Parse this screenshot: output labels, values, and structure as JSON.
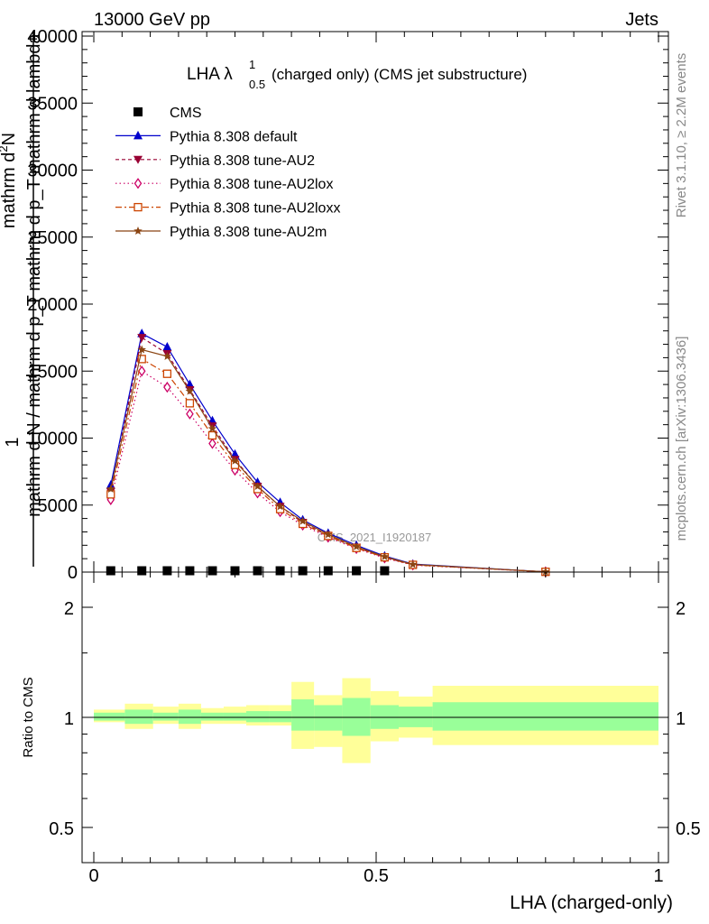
{
  "header": {
    "left": "13000 GeV pp",
    "right": "Jets"
  },
  "side": {
    "rivet": "Rivet 3.1.10, ≥ 2.2M events",
    "mcplots": "mcplots.cern.ch [arXiv:1306.3436]"
  },
  "watermark": "CMS_2021_I1920187",
  "colors": {
    "cms": "#000000",
    "default": "#0000cc",
    "au2": "#990033",
    "au2lox": "#cc0066",
    "au2loxx": "#cc4400",
    "au2m": "#8b4513",
    "band_outer": "#ffff99",
    "band_inner": "#99ff99"
  },
  "chart_data": [
    {
      "type": "line",
      "title": "LHA λ",
      "title_sup": "1",
      "title_sub": "0.5",
      "title_suffix": "(charged only) (CMS jet substructure)",
      "ylabel_top": "mathrm d",
      "ylabel_sup": "2",
      "ylabel_n": "N",
      "ylabel_bottom": "mathrm d p_T mathrm d lambda",
      "ylabel_frac_num": "1",
      "ylabel_frac_den": "mathrm d N / mathrm d p_T",
      "xlim": [
        0,
        1
      ],
      "ylim": [
        0,
        40000
      ],
      "yticks": [
        "0",
        "5000",
        "10000",
        "15000",
        "20000",
        "25000",
        "30000",
        "35000",
        "40000"
      ],
      "legend_position": "top-left",
      "x": [
        0.03,
        0.085,
        0.13,
        0.17,
        0.21,
        0.25,
        0.29,
        0.33,
        0.37,
        0.415,
        0.465,
        0.515,
        0.565,
        0.8
      ],
      "series": [
        {
          "name": "CMS",
          "key": "cms",
          "marker": "square",
          "x": [
            0.03,
            0.085,
            0.13,
            0.17,
            0.21,
            0.25,
            0.29,
            0.33,
            0.37,
            0.415,
            0.465,
            0.515
          ],
          "values": [
            100,
            100,
            100,
            100,
            100,
            100,
            100,
            100,
            100,
            100,
            100,
            100
          ]
        },
        {
          "name": "Pythia 8.308 default",
          "key": "default",
          "marker": "triangle-up",
          "dash": "",
          "values": [
            6500,
            17800,
            16800,
            14000,
            11300,
            8800,
            6700,
            5200,
            3900,
            2900,
            2000,
            1200,
            600,
            20
          ]
        },
        {
          "name": "Pythia 8.308 tune-AU2",
          "key": "au2",
          "marker": "triangle-down",
          "dash": "4,3",
          "values": [
            6000,
            17500,
            16300,
            13600,
            10900,
            8400,
            6400,
            4900,
            3700,
            2700,
            1850,
            1100,
            550,
            20
          ]
        },
        {
          "name": "Pythia 8.308 tune-AU2lox",
          "key": "au2lox",
          "marker": "diamond",
          "dash": "1.5,3",
          "values": [
            5400,
            15000,
            13800,
            11800,
            9600,
            7600,
            5900,
            4500,
            3500,
            2600,
            1750,
            1050,
            520,
            20
          ]
        },
        {
          "name": "Pythia 8.308 tune-AU2loxx",
          "key": "au2loxx",
          "marker": "square-open",
          "dash": "7,3,2,3",
          "values": [
            5800,
            15900,
            14800,
            12600,
            10200,
            8000,
            6200,
            4700,
            3600,
            2700,
            1800,
            1100,
            540,
            20
          ]
        },
        {
          "name": "Pythia 8.308 tune-AU2m",
          "key": "au2m",
          "marker": "star",
          "dash": "",
          "values": [
            6200,
            16600,
            16100,
            13500,
            10700,
            8300,
            6400,
            4900,
            3800,
            2800,
            1900,
            1150,
            570,
            20
          ]
        }
      ]
    },
    {
      "type": "area",
      "ylabel": "Ratio to CMS",
      "xlabel": "LHA (charged-only)",
      "xlim": [
        0,
        1
      ],
      "ylim": [
        0.4,
        2.3
      ],
      "log_y": true,
      "xticks": [
        "0",
        "0.5",
        "1"
      ],
      "yticks": [
        "0.5",
        "1",
        "2"
      ],
      "bin_edges": [
        0,
        0.055,
        0.105,
        0.15,
        0.19,
        0.23,
        0.27,
        0.31,
        0.35,
        0.39,
        0.44,
        0.49,
        0.54,
        0.6,
        1
      ],
      "inner_band": [
        [
          0.98,
          1.03
        ],
        [
          0.96,
          1.05
        ],
        [
          0.98,
          1.03
        ],
        [
          0.96,
          1.05
        ],
        [
          0.98,
          1.03
        ],
        [
          0.98,
          1.03
        ],
        [
          0.97,
          1.04
        ],
        [
          0.97,
          1.04
        ],
        [
          0.92,
          1.12
        ],
        [
          0.92,
          1.08
        ],
        [
          0.89,
          1.13
        ],
        [
          0.93,
          1.08
        ],
        [
          0.94,
          1.07
        ],
        [
          0.92,
          1.1
        ]
      ],
      "outer_band": [
        [
          0.97,
          1.05
        ],
        [
          0.93,
          1.09
        ],
        [
          0.96,
          1.07
        ],
        [
          0.93,
          1.09
        ],
        [
          0.96,
          1.06
        ],
        [
          0.96,
          1.07
        ],
        [
          0.95,
          1.08
        ],
        [
          0.95,
          1.08
        ],
        [
          0.82,
          1.25
        ],
        [
          0.83,
          1.15
        ],
        [
          0.75,
          1.28
        ],
        [
          0.86,
          1.18
        ],
        [
          0.88,
          1.14
        ],
        [
          0.84,
          1.22
        ]
      ]
    }
  ]
}
